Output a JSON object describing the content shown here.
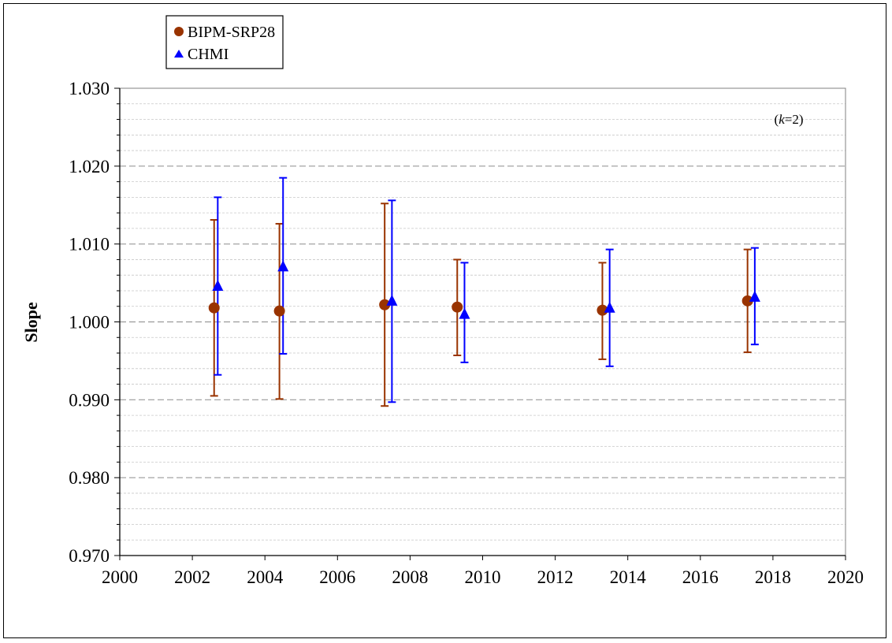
{
  "chart_data": {
    "type": "scatter",
    "xlim": [
      2000,
      2020
    ],
    "ylim": [
      0.97,
      1.03
    ],
    "xticks": [
      "2000",
      "2002",
      "2004",
      "2006",
      "2008",
      "2010",
      "2012",
      "2014",
      "2016",
      "2018",
      "2020"
    ],
    "xtick_values": [
      2000,
      2002,
      2004,
      2006,
      2008,
      2010,
      2012,
      2014,
      2016,
      2018,
      2020
    ],
    "yticks": [
      "0.970",
      "0.980",
      "0.990",
      "1.000",
      "1.010",
      "1.020",
      "1.030"
    ],
    "ytick_values": [
      0.97,
      0.98,
      0.99,
      1.0,
      1.01,
      1.02,
      1.03
    ],
    "ylabel": "Slope",
    "xlabel": "",
    "annotation": {
      "italic": "k",
      "rest": "=2)",
      "open": "("
    },
    "grid": {
      "major_y": true,
      "minor_y": true,
      "x": false
    },
    "legend_position": "top-left (outside plot)",
    "series": [
      {
        "name": "BIPM-SRP28",
        "marker": "circle",
        "color": "#993300",
        "points": [
          {
            "x": 2002.6,
            "y": 1.0018,
            "ylow": 0.9905,
            "yhigh": 1.0131
          },
          {
            "x": 2004.4,
            "y": 1.0014,
            "ylow": 0.9901,
            "yhigh": 1.0126
          },
          {
            "x": 2007.3,
            "y": 1.0022,
            "ylow": 0.9892,
            "yhigh": 1.0152
          },
          {
            "x": 2009.3,
            "y": 1.0019,
            "ylow": 0.9957,
            "yhigh": 1.008
          },
          {
            "x": 2013.3,
            "y": 1.0015,
            "ylow": 0.9952,
            "yhigh": 1.0076
          },
          {
            "x": 2017.3,
            "y": 1.0027,
            "ylow": 0.9961,
            "yhigh": 1.0093
          }
        ]
      },
      {
        "name": "CHMI",
        "marker": "triangle",
        "color": "#0000FF",
        "points": [
          {
            "x": 2002.7,
            "y": 1.0046,
            "ylow": 0.9932,
            "yhigh": 1.016
          },
          {
            "x": 2004.5,
            "y": 1.0071,
            "ylow": 0.9959,
            "yhigh": 1.0185
          },
          {
            "x": 2007.5,
            "y": 1.0027,
            "ylow": 0.9897,
            "yhigh": 1.0156
          },
          {
            "x": 2009.5,
            "y": 1.001,
            "ylow": 0.9948,
            "yhigh": 1.0076
          },
          {
            "x": 2013.5,
            "y": 1.0018,
            "ylow": 0.9943,
            "yhigh": 1.0093
          },
          {
            "x": 2017.5,
            "y": 1.0032,
            "ylow": 0.9971,
            "yhigh": 1.0095
          }
        ]
      }
    ]
  }
}
